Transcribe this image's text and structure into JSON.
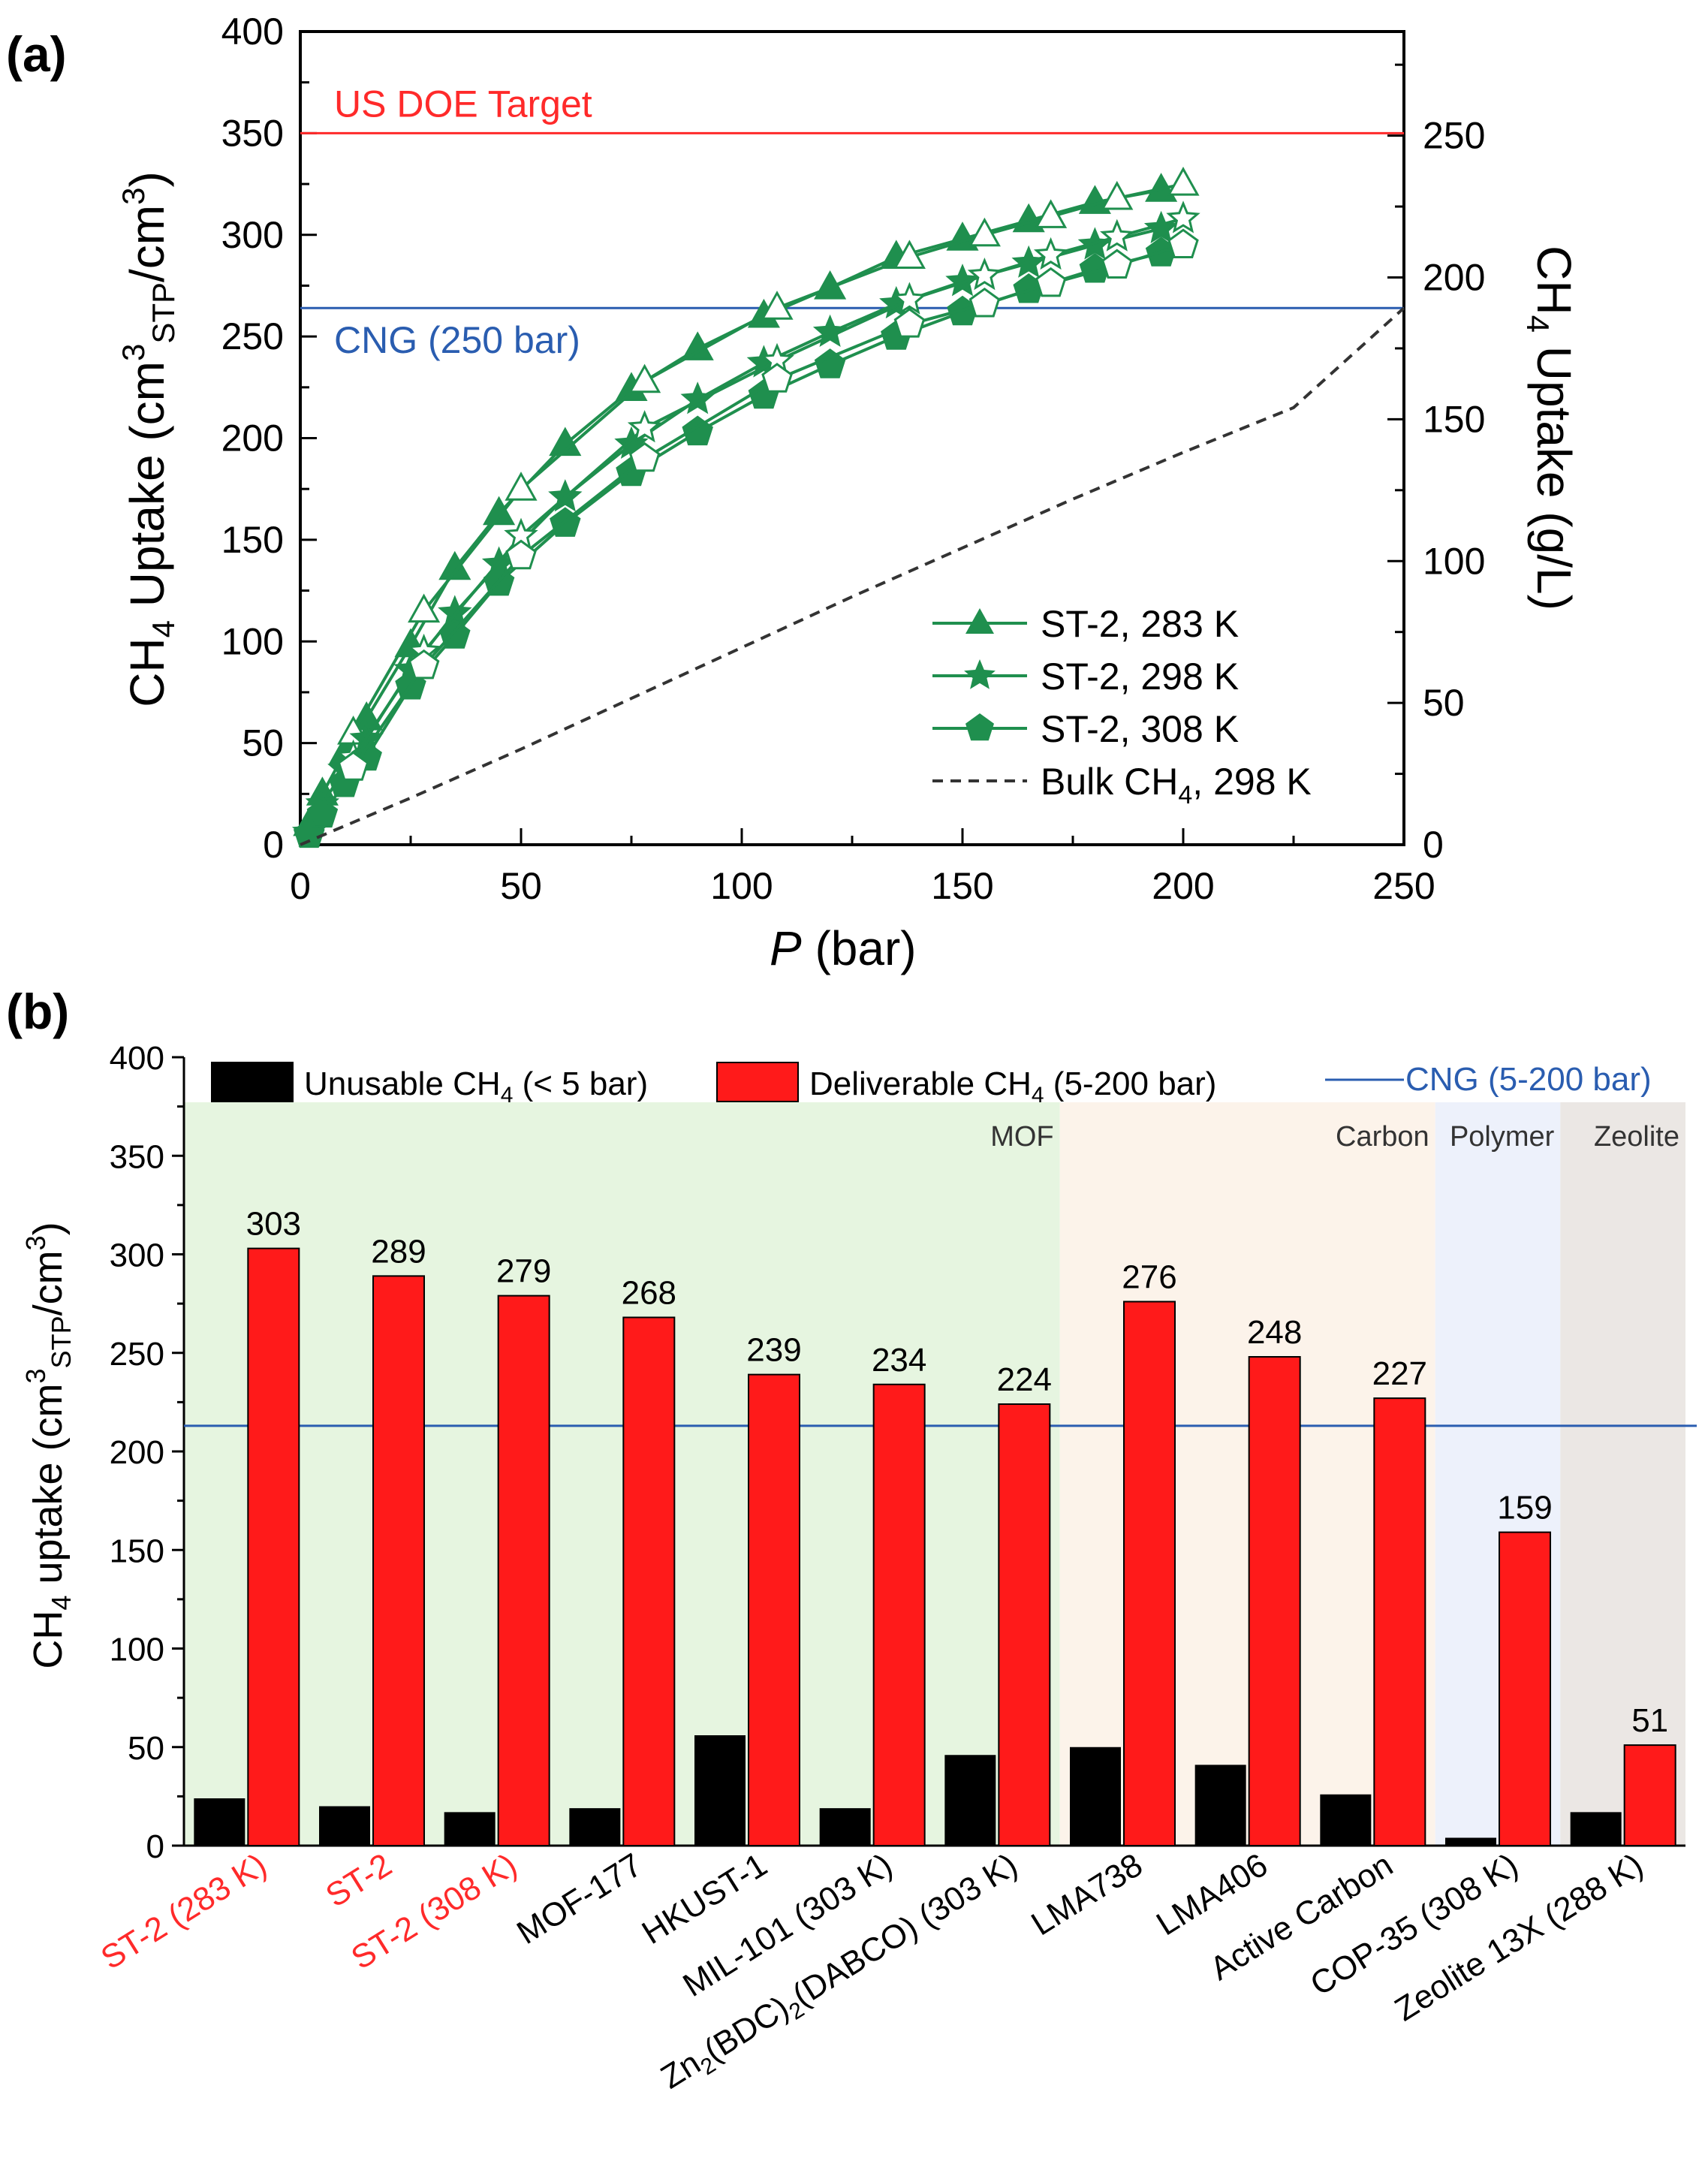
{
  "colors": {
    "series_green": "#1f8f4e",
    "doe_red": "#ff2a2a",
    "cng_blue": "#2a5db0",
    "bar_black": "#000000",
    "bar_red": "#ff1a1a",
    "mof_bg": "#e6f5e0",
    "carbon_bg": "#fcf3ea",
    "polymer_bg": "#edf1fb",
    "zeolite_bg": "#ebe7e4",
    "red_label": "#ff2a2a"
  },
  "chart_data": [
    {
      "panel_label": "(a)",
      "type": "line",
      "xlabel_italic": "P",
      "xlabel_rest": " (bar)",
      "ylabel": "CH4 Uptake (cm3STP/cm3)",
      "ylabel_parts": {
        "a": "CH",
        "b": "4",
        "c": " Uptake (cm",
        "d": "3",
        "e": "STP",
        "f": "/cm",
        "g": "3",
        "h": ")"
      },
      "y2label_parts": {
        "a": "CH",
        "b": "4",
        "c": " Uptake (g/L)"
      },
      "xlim": [
        0,
        250
      ],
      "ylim": [
        0,
        400
      ],
      "y2lim": [
        0,
        286.7
      ],
      "xticks": [
        "0",
        "50",
        "100",
        "150",
        "200",
        "250"
      ],
      "yticks": [
        "0",
        "50",
        "100",
        "150",
        "200",
        "250",
        "300",
        "350",
        "400"
      ],
      "y2ticks": [
        "0",
        "50",
        "100",
        "150",
        "200",
        "250"
      ],
      "reference_lines": [
        {
          "label": "US DOE Target",
          "y": 350
        },
        {
          "label": "CNG (250 bar)",
          "y": 264
        }
      ],
      "series": [
        {
          "name": "ST-2, 283 K",
          "marker": "triangle",
          "adsorption": {
            "x": [
              2,
              5,
              10,
              15,
              25,
              35,
              45,
              60,
              75,
              90,
              105,
              120,
              135,
              150,
              165,
              180,
              195
            ],
            "y": [
              10,
              25,
              45,
              62,
              98,
              136,
              163,
              197,
              224,
              244,
              260,
              274,
              289,
              298,
              307,
              316,
              322
            ]
          },
          "desorption": {
            "x": [
              200,
              185,
              170,
              155,
              138,
              108,
              78,
              50,
              28,
              12
            ],
            "y": [
              325,
              318,
              309,
              300,
              289,
              264,
              228,
              175,
              115,
              55
            ]
          }
        },
        {
          "name": "ST-2, 298 K",
          "marker": "star",
          "adsorption": {
            "x": [
              2,
              5,
              10,
              15,
              25,
              35,
              45,
              60,
              75,
              90,
              105,
              120,
              135,
              150,
              165,
              180,
              195
            ],
            "y": [
              6,
              20,
              37,
              52,
              86,
              114,
              138,
              171,
              197,
              219,
              237,
              252,
              266,
              277,
              286,
              295,
              303
            ]
          },
          "desorption": {
            "x": [
              200,
              185,
              170,
              155,
              138,
              108,
              78,
              50,
              28,
              12
            ],
            "y": [
              308,
              299,
              290,
              280,
              268,
              238,
              205,
              152,
              95,
              43
            ]
          }
        },
        {
          "name": "ST-2, 308 K",
          "marker": "pentagon",
          "adsorption": {
            "x": [
              2,
              5,
              10,
              15,
              25,
              35,
              45,
              60,
              75,
              90,
              105,
              120,
              135,
              150,
              165,
              180,
              195
            ],
            "y": [
              5,
              15,
              30,
              43,
              78,
              103,
              129,
              158,
              183,
              203,
              221,
              236,
              250,
              262,
              273,
              283,
              291
            ]
          },
          "desorption": {
            "x": [
              200,
              185,
              170,
              155,
              138,
              108,
              78,
              50,
              28,
              12
            ],
            "y": [
              295,
              285,
              276,
              266,
              256,
              229,
              190,
              142,
              88,
              38
            ]
          }
        },
        {
          "name": "Bulk CH4, 298 K",
          "legend_parts": {
            "a": "Bulk CH",
            "b": "4",
            "c": ", 298 K"
          },
          "marker": "none",
          "style": "dashed",
          "x": [
            0,
            25,
            50,
            75,
            100,
            125,
            150,
            175,
            200,
            225,
            250
          ],
          "y": [
            0,
            23,
            47,
            72,
            97,
            122,
            146,
            170,
            193,
            215,
            264
          ]
        }
      ]
    },
    {
      "panel_label": "(b)",
      "type": "bar",
      "ylabel_parts": {
        "a": "CH",
        "b": "4",
        "c": " uptake (cm",
        "d": "3",
        "e": "STP",
        "f": "/cm",
        "g": "3",
        "h": ")"
      },
      "ylim": [
        0,
        400
      ],
      "yticks": [
        "0",
        "50",
        "100",
        "150",
        "200",
        "250",
        "300",
        "350",
        "400"
      ],
      "categories": [
        "ST-2 (283 K)",
        "ST-2",
        "ST-2 (308 K)",
        "MOF-177",
        "HKUST-1",
        "MIL-101 (303 K)",
        "Zn2(BDC)2(DABCO) (303 K)",
        "LMA738",
        "LMA406",
        "Active Carbon",
        "COP-35 (308 K)",
        "Zeolite 13X (288 K)"
      ],
      "zn_label_parts": {
        "a": "Zn",
        "b": "2",
        "c": "(BDC)",
        "d": "2",
        "e": "(DABCO) (303 K)"
      },
      "highlighted_categories": [
        0,
        1,
        2
      ],
      "series": [
        {
          "name": "Unusable CH4 (< 5 bar)",
          "legend_parts": {
            "a": "Unusable CH",
            "b": "4",
            "c": " (< 5 bar)"
          },
          "values": [
            24,
            20,
            17,
            19,
            56,
            19,
            46,
            50,
            41,
            26,
            4,
            17
          ]
        },
        {
          "name": "Deliverable CH4 (5-200 bar)",
          "legend_parts": {
            "a": "Deliverable CH",
            "b": "4",
            "c": " (5-200 bar)"
          },
          "values": [
            303,
            289,
            279,
            268,
            239,
            234,
            224,
            276,
            248,
            227,
            159,
            51
          ],
          "data_labels": [
            "303",
            "289",
            "279",
            "268",
            "239",
            "234",
            "224",
            "276",
            "248",
            "227",
            "159",
            "51"
          ]
        }
      ],
      "reference_lines": [
        {
          "label": "CNG (5-200 bar)",
          "y": 213
        }
      ],
      "regions": [
        {
          "label": "MOF",
          "from": 0,
          "to": 6
        },
        {
          "label": "Carbon",
          "from": 7,
          "to": 9
        },
        {
          "label": "Polymer",
          "from": 10,
          "to": 10
        },
        {
          "label": "Zeolite",
          "from": 11,
          "to": 11
        }
      ]
    }
  ]
}
